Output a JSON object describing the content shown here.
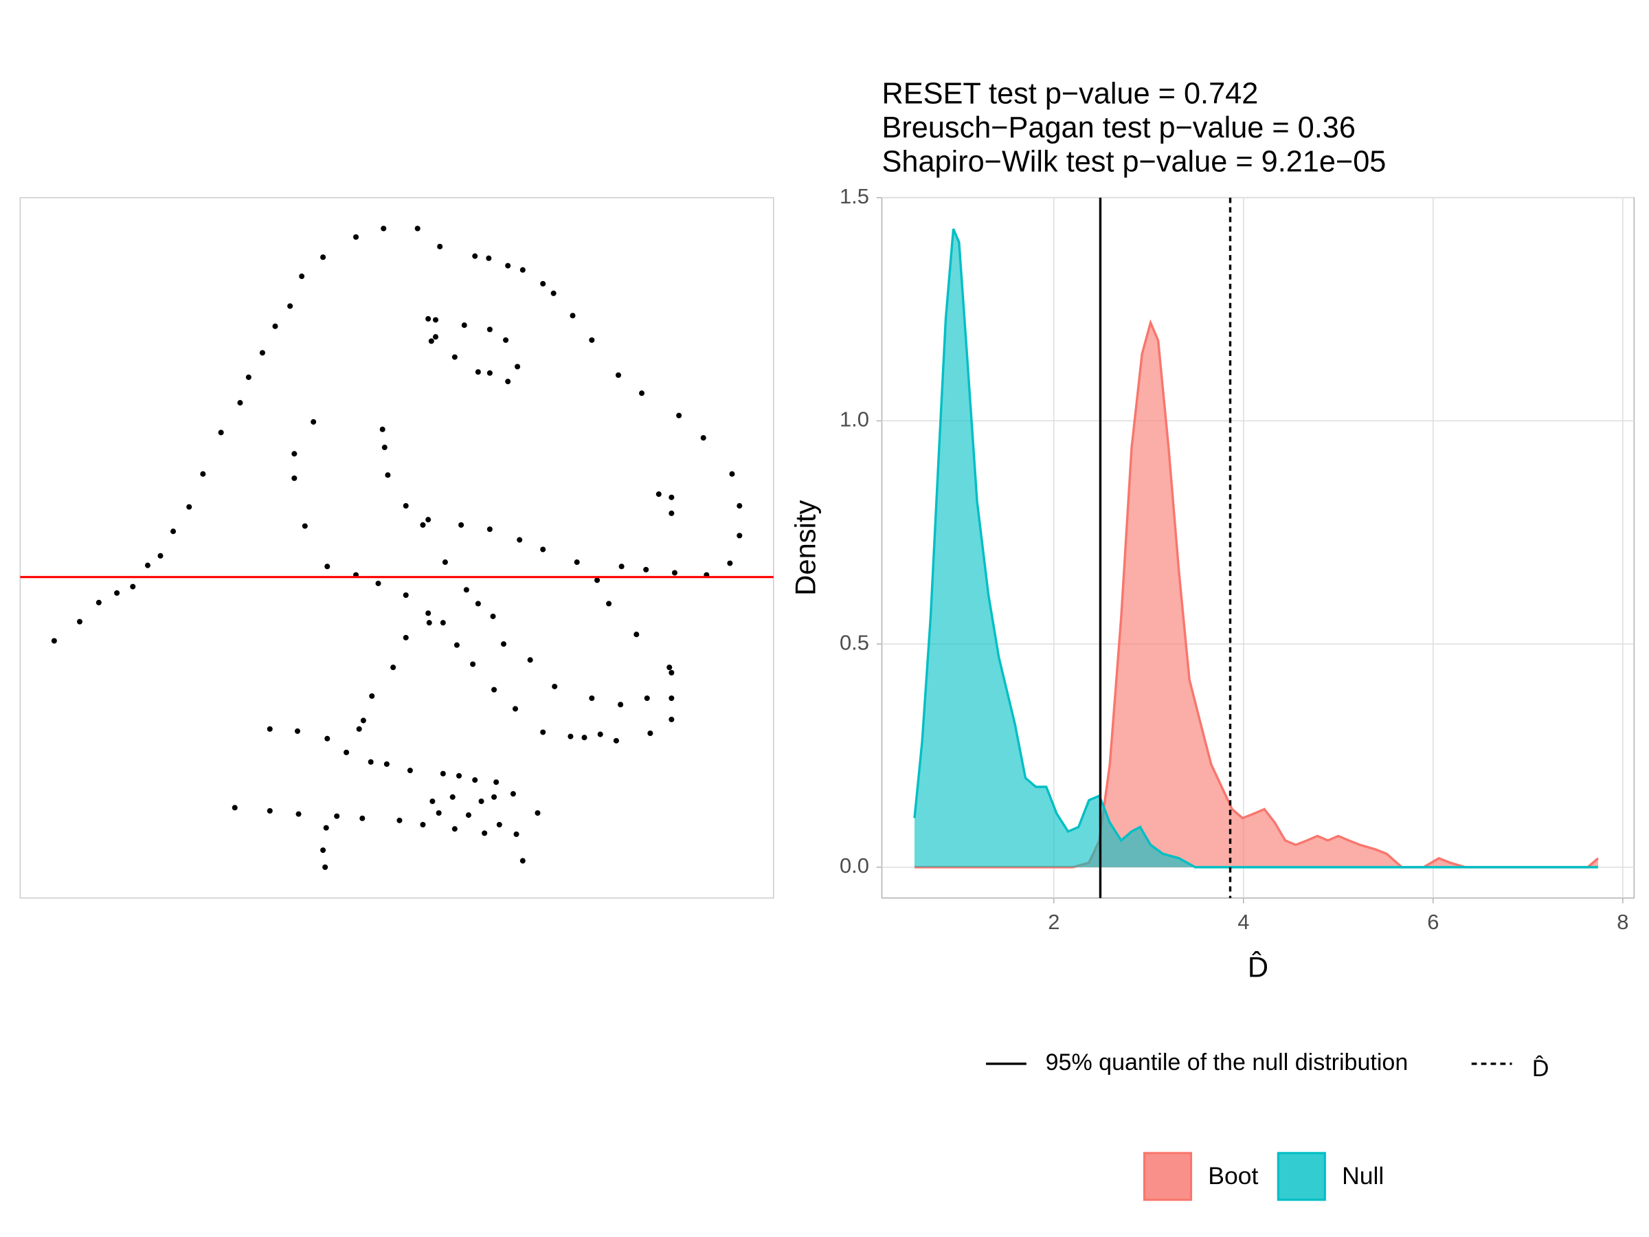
{
  "chart_data": [
    {
      "type": "scatter",
      "color": "#000000",
      "xlim": [
        0,
        709
      ],
      "ylim": [
        -302,
        357
      ],
      "hline": {
        "value": 0,
        "color": "#ff0000"
      },
      "x": [
        32,
        56,
        74,
        91,
        106,
        120,
        132,
        144,
        159,
        172,
        189,
        207,
        215,
        228,
        240,
        254,
        265,
        285,
        316,
        342,
        374,
        395,
        428,
        441,
        459,
        473,
        492,
        502,
        520,
        538,
        563,
        585,
        620,
        643,
        670,
        677,
        677,
        668,
        646,
        616,
        589,
        566,
        543,
        524,
        492,
        470,
        442,
        415,
        384,
        379,
        363,
        346,
        343,
        341,
        276,
        258,
        258,
        268,
        289,
        316,
        337,
        363,
        384,
        385,
        398,
        420,
        431,
        445,
        411,
        363,
        351,
        331,
        323,
        319,
        307,
        289,
        261,
        235,
        330,
        345,
        367,
        398,
        413,
        428,
        448,
        434,
        464,
        446,
        407,
        388,
        202,
        235,
        262,
        298,
        322,
        357,
        379,
        394,
        409,
        422,
        437,
        451,
        467,
        487,
        288,
        285,
        287,
        473,
        455,
        480,
        503,
        538,
        565,
        590,
        613,
        613,
        611,
        580,
        554,
        613,
        613,
        601,
        426,
        446,
        466,
        492,
        518,
        531,
        546,
        561,
        593,
        613,
        384,
        391,
        387,
        391,
        418,
        409,
        442,
        457,
        431,
        442,
        459,
        468,
        400
      ],
      "values": [
        -60,
        -42,
        -24,
        -15,
        -9,
        11,
        20,
        43,
        66,
        97,
        136,
        164,
        188,
        211,
        236,
        255,
        283,
        301,
        320,
        328,
        328,
        311,
        302,
        300,
        293,
        289,
        276,
        267,
        246,
        223,
        190,
        173,
        152,
        131,
        97,
        67,
        39,
        13,
        2,
        4,
        7,
        10,
        -3,
        14,
        26,
        35,
        45,
        49,
        54,
        49,
        67,
        96,
        122,
        139,
        146,
        116,
        93,
        48,
        10,
        2,
        -6,
        -17,
        -34,
        -43,
        -43,
        -12,
        -25,
        -37,
        -64,
        -57,
        -85,
        -112,
        -135,
        -143,
        -165,
        -152,
        -145,
        -143,
        -174,
        -176,
        -182,
        -185,
        -187,
        -191,
        -193,
        -211,
        -204,
        -207,
        -207,
        -211,
        -217,
        -220,
        -223,
        -225,
        -227,
        -229,
        -233,
        -222,
        -237,
        -224,
        -241,
        -233,
        -242,
        -222,
        -236,
        -257,
        -273,
        -267,
        -63,
        -78,
        -103,
        -114,
        -120,
        -114,
        -114,
        -90,
        -85,
        -54,
        -25,
        60,
        75,
        78,
        -82,
        -106,
        -124,
        -146,
        -150,
        -151,
        -148,
        -154,
        -147,
        -134,
        243,
        242,
        222,
        226,
        237,
        207,
        233,
        223,
        193,
        192,
        184,
        198,
        14
      ]
    },
    {
      "type": "density",
      "title": [
        "RESET test p−value = 0.742",
        "Breusch−Pagan test p−value = 0.36",
        "Shapiro−Wilk test p−value = 9.21e−05"
      ],
      "xlabel": "D̂",
      "ylabel": "Density",
      "xlim": [
        0.186,
        8.12
      ],
      "ylim": [
        -0.069,
        1.5
      ],
      "xticks": [
        2,
        4,
        6,
        8
      ],
      "yticks": [
        {
          "value": 0,
          "label": "0.0"
        },
        0.5,
        {
          "value": 1,
          "label": "1.0"
        },
        1.5
      ],
      "grid": true,
      "series": [
        {
          "name": "Boot",
          "color": "#F8766D",
          "x": [
            0.53,
            2.2,
            2.37,
            2.48,
            2.59,
            2.71,
            2.82,
            2.93,
            3.02,
            3.1,
            3.21,
            3.32,
            3.43,
            3.55,
            3.66,
            3.77,
            3.88,
            3.99,
            4.11,
            4.22,
            4.33,
            4.44,
            4.55,
            4.67,
            4.78,
            4.89,
            5.0,
            5.11,
            5.23,
            5.39,
            5.51,
            5.67,
            5.9,
            6.06,
            6.18,
            6.34,
            7.63,
            7.74
          ],
          "values": [
            0,
            0,
            0.01,
            0.06,
            0.23,
            0.56,
            0.94,
            1.15,
            1.22,
            1.18,
            0.94,
            0.66,
            0.42,
            0.32,
            0.23,
            0.18,
            0.13,
            0.11,
            0.12,
            0.13,
            0.1,
            0.06,
            0.05,
            0.06,
            0.07,
            0.06,
            0.07,
            0.06,
            0.05,
            0.04,
            0.03,
            0,
            0,
            0.02,
            0.01,
            0,
            0,
            0.02
          ]
        },
        {
          "name": "Null",
          "color": "#00BFC4",
          "x": [
            0.53,
            0.61,
            0.7,
            0.79,
            0.86,
            0.94,
            1.0,
            1.08,
            1.19,
            1.31,
            1.42,
            1.59,
            1.7,
            1.81,
            1.92,
            2.03,
            2.15,
            2.26,
            2.37,
            2.48,
            2.59,
            2.71,
            2.82,
            2.91,
            3.02,
            3.15,
            3.32,
            3.49,
            3.66,
            7.74
          ],
          "values": [
            0.11,
            0.28,
            0.56,
            0.94,
            1.23,
            1.43,
            1.4,
            1.16,
            0.82,
            0.61,
            0.47,
            0.32,
            0.2,
            0.18,
            0.18,
            0.12,
            0.08,
            0.09,
            0.15,
            0.16,
            0.1,
            0.06,
            0.08,
            0.09,
            0.05,
            0.03,
            0.02,
            0,
            0,
            0
          ]
        }
      ],
      "vlines": [
        {
          "value": 2.49,
          "style": "solid",
          "label": "95% quantile of the null distribution"
        },
        {
          "value": 3.86,
          "style": "dashed",
          "label": "D̂"
        }
      ]
    }
  ]
}
